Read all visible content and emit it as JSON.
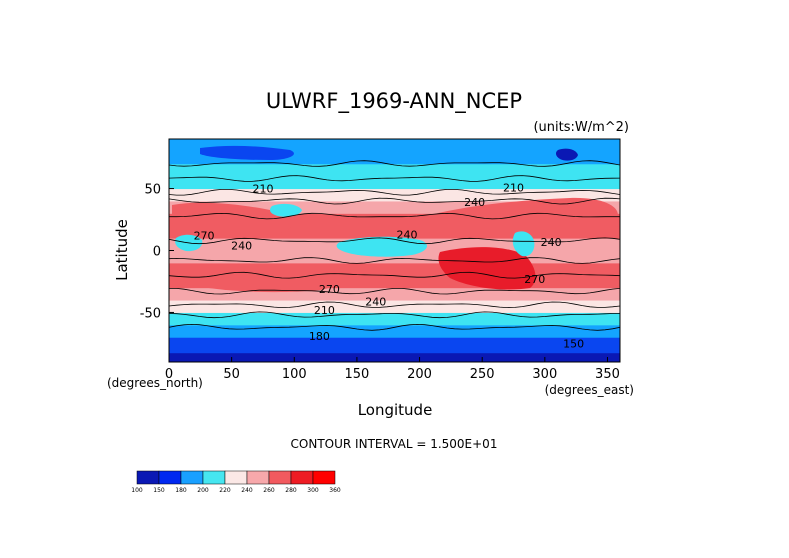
{
  "chart_data": {
    "type": "heatmap",
    "title": "ULWRF_1969-ANN_NCEP",
    "units_label": "(units:W/m^2)",
    "xlabel": "Longitude",
    "ylabel": "Latitude",
    "x_unit_label": "(degrees_east)",
    "y_unit_label": "(degrees_north)",
    "xlim": [
      0,
      360
    ],
    "ylim": [
      -90,
      90
    ],
    "x_ticks": [
      "0",
      "50",
      "100",
      "150",
      "200",
      "250",
      "300",
      "350"
    ],
    "x_tick_values": [
      0,
      50,
      100,
      150,
      200,
      250,
      300,
      350
    ],
    "y_ticks": [
      "50",
      "0",
      "-50"
    ],
    "y_tick_values": [
      50,
      0,
      -50
    ],
    "contour_interval_text": "CONTOUR INTERVAL = 1.500E+01",
    "colorbar_levels": [
      "100",
      "150",
      "180",
      "200",
      "220",
      "240",
      "260",
      "280",
      "300",
      "360"
    ],
    "colorbar_colors": [
      "#0a18b4",
      "#0028f0",
      "#19a0ff",
      "#46e6f0",
      "#fbe8e6",
      "#f7a8ab",
      "#f25a5f",
      "#ee1c24",
      "#ff0000"
    ],
    "band_colors": {
      "lt150": "#0a18b4",
      "150-180": "#0a46f0",
      "180-200": "#14a4ff",
      "200-220": "#3ee4f2",
      "220-240": "#fbe6e4",
      "240-260": "#f5a6aa",
      "260-280": "#f05c62",
      "gt280": "#e81c2a"
    },
    "latitude_profile": [
      {
        "lat": -90,
        "value": 140
      },
      {
        "lat": -75,
        "value": 160
      },
      {
        "lat": -65,
        "value": 190
      },
      {
        "lat": -55,
        "value": 210
      },
      {
        "lat": -45,
        "value": 235
      },
      {
        "lat": -35,
        "value": 255
      },
      {
        "lat": -25,
        "value": 270
      },
      {
        "lat": -15,
        "value": 270
      },
      {
        "lat": -5,
        "value": 245
      },
      {
        "lat": 5,
        "value": 240
      },
      {
        "lat": 15,
        "value": 265
      },
      {
        "lat": 25,
        "value": 265
      },
      {
        "lat": 35,
        "value": 245
      },
      {
        "lat": 45,
        "value": 225
      },
      {
        "lat": 55,
        "value": 210
      },
      {
        "lat": 65,
        "value": 200
      },
      {
        "lat": 75,
        "value": 195
      },
      {
        "lat": 90,
        "value": 185
      }
    ],
    "contour_labels": [
      {
        "text": "210",
        "lon": 75,
        "lat": 50
      },
      {
        "text": "210",
        "lon": 275,
        "lat": 51
      },
      {
        "text": "240",
        "lon": 244,
        "lat": 39
      },
      {
        "text": "240",
        "lon": 190,
        "lat": 13
      },
      {
        "text": "240",
        "lon": 305,
        "lat": 7
      },
      {
        "text": "240",
        "lon": 58,
        "lat": 4
      },
      {
        "text": "270",
        "lon": 28,
        "lat": 12
      },
      {
        "text": "270",
        "lon": 128,
        "lat": -31
      },
      {
        "text": "240",
        "lon": 165,
        "lat": -41
      },
      {
        "text": "210",
        "lon": 124,
        "lat": -48
      },
      {
        "text": "270",
        "lon": 292,
        "lat": -23
      },
      {
        "text": "180",
        "lon": 120,
        "lat": -69
      },
      {
        "text": "150",
        "lon": 323,
        "lat": -75
      }
    ]
  }
}
